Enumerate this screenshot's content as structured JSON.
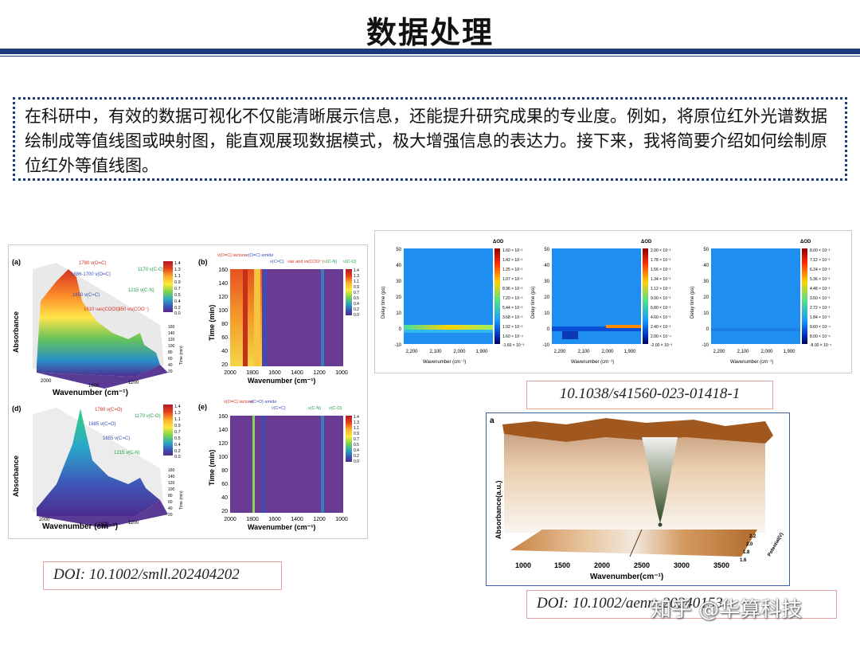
{
  "slide": {
    "title": "数据处理",
    "intro": "在科研中，有效的数据可视化不仅能清晰展示信息，还能提升研究成果的专业度。例如，将原位红外光谱数据绘制成等值线图或映射图，能直观展现数据模式，极大增强信息的表达力。接下来，我将简要介绍如何绘制原位红外等值线图。",
    "watermark": "知乎 @华算科技"
  },
  "doi": {
    "left": "DOI: 10.1002/smll.202404202",
    "top_right": "10.1038/s41560-023-01418-1",
    "bottom_right": "DOI: 10.1002/aenm.20240153"
  },
  "figures": {
    "left": {
      "a": {
        "letter": "(a)",
        "ylabel": "Absorbance",
        "xlabel": "Wavenumber (cm⁻¹)",
        "annotations": [
          "1780 ν(O=C)",
          "1686-1700 ν(O=C)",
          "1650 ν(C=C)",
          "1610 νas(COO⁻)",
          "1350 νs(COO⁻)",
          "1215 ν(C-N)",
          "1170 ν(C-O)"
        ],
        "xticks": [
          "2000",
          "1600",
          "1200"
        ],
        "time_label": "Time (min)",
        "time_ticks": [
          "160",
          "140",
          "120",
          "100",
          "80",
          "60",
          "40",
          "20"
        ],
        "colorbar_ticks": [
          "1.4",
          "1.3",
          "1.1",
          "0.9",
          "0.7",
          "0.5",
          "0.4",
          "0.2",
          "0.0"
        ]
      },
      "b": {
        "letter": "(b)",
        "top_labels": [
          "ν(O=C) lactone",
          "ν(O=C) amide",
          "ν(C=C)",
          "νas and νs(COO⁻)",
          "ν(C-N)",
          "ν(C-O)"
        ],
        "ylabel": "Time (min)",
        "xlabel": "Wavenumber (cm⁻¹)",
        "yticks": [
          "160",
          "140",
          "120",
          "100",
          "80",
          "60",
          "40",
          "20"
        ],
        "xticks": [
          "2000",
          "1800",
          "1600",
          "1400",
          "1200",
          "1000"
        ],
        "colorbar_ticks": [
          "1.4",
          "1.3",
          "1.1",
          "0.9",
          "0.7",
          "0.5",
          "0.4",
          "0.2",
          "0.0"
        ]
      },
      "d": {
        "letter": "(d)",
        "ylabel": "Absorbance",
        "xlabel": "Wavenumber (cm⁻¹)",
        "annotations": [
          "1780 ν(C=O)",
          "1685 ν(C=O)",
          "1655 ν(C=C)",
          "1215 ν(C-N)",
          "1170 ν(C-O)"
        ],
        "xticks": [
          "2000",
          "1600",
          "1200"
        ],
        "time_label": "Time (min)",
        "time_ticks": [
          "160",
          "140",
          "120",
          "100",
          "80",
          "60",
          "40",
          "20"
        ],
        "colorbar_ticks": [
          "1.4",
          "1.3",
          "1.1",
          "0.9",
          "0.7",
          "0.5",
          "0.4",
          "0.2",
          "0.0"
        ]
      },
      "e": {
        "letter": "(e)",
        "top_labels": [
          "ν(O=C) lactone",
          "ν(C=O) amide",
          "ν(C=C)",
          "ν(C-N)",
          "ν(C-O)"
        ],
        "ylabel": "Time (min)",
        "xlabel": "Wavenumber (cm⁻¹)",
        "yticks": [
          "160",
          "140",
          "120",
          "100",
          "80",
          "60",
          "40",
          "20"
        ],
        "xticks": [
          "2000",
          "1800",
          "1600",
          "1400",
          "1200",
          "1000"
        ],
        "colorbar_ticks": [
          "1.4",
          "1.3",
          "1.1",
          "0.9",
          "0.7",
          "0.5",
          "0.4",
          "0.2",
          "0.0"
        ]
      }
    },
    "top_right": {
      "ylabel": "Delay time (ps)",
      "xlabel": "Wavenumber (cm⁻¹)",
      "yticks": [
        "50",
        "40",
        "30",
        "20",
        "10",
        "0",
        "-10"
      ],
      "xticks": [
        "2,200",
        "2,100",
        "2,000",
        "1,900"
      ],
      "colorbar_title": "ΔOD",
      "colorbars": [
        [
          "1.60 × 10⁻²",
          "1.42 × 10⁻²",
          "1.25 × 10⁻²",
          "1.07 × 10⁻²",
          "8.96 × 10⁻³",
          "7.20 × 10⁻³",
          "5.44 × 10⁻³",
          "3.68 × 10⁻³",
          "1.92 × 10⁻³",
          "1.60 × 10⁻⁴",
          "-1.60 × 10⁻³"
        ],
        [
          "2.00 × 10⁻²",
          "1.78 × 10⁻²",
          "1.56 × 10⁻²",
          "1.34 × 10⁻²",
          "1.12 × 10⁻²",
          "9.00 × 10⁻³",
          "6.80 × 10⁻³",
          "4.60 × 10⁻³",
          "2.40 × 10⁻³",
          "2.00 × 10⁻⁴",
          "-2.00 × 10⁻³"
        ],
        [
          "8.00 × 10⁻³",
          "7.12 × 10⁻³",
          "6.24 × 10⁻³",
          "5.36 × 10⁻³",
          "4.48 × 10⁻³",
          "3.60 × 10⁻³",
          "2.72 × 10⁻³",
          "1.84 × 10⁻³",
          "9.60 × 10⁻⁴",
          "8.00 × 10⁻⁵",
          "-8.00 × 10⁻⁴"
        ]
      ]
    },
    "bottom_right": {
      "letter": "a",
      "ylabel": "Absorbance(a.u.)",
      "xlabel": "Wavenumber(cm⁻¹)",
      "xticks": [
        "1000",
        "1500",
        "2000",
        "2500",
        "3000",
        "3500"
      ],
      "potential_label": "Potential(V)",
      "potential_ticks": [
        "2.2",
        "2.0",
        "1.8",
        "1.6"
      ]
    }
  }
}
